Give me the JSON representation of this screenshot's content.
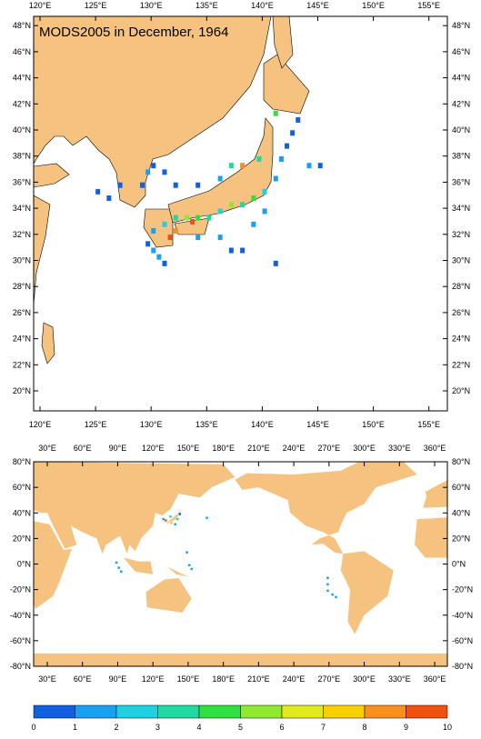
{
  "title": "MODS2005 in December, 1964",
  "regional_map": {
    "x_labels": [
      "120°E",
      "125°E",
      "130°E",
      "135°E",
      "140°E",
      "145°E",
      "150°E",
      "155°E"
    ],
    "y_labels": [
      "20°N",
      "22°N",
      "24°N",
      "26°N",
      "28°N",
      "30°N",
      "32°N",
      "34°N",
      "36°N",
      "38°N",
      "40°N",
      "42°N",
      "44°N",
      "46°N",
      "48°N"
    ],
    "cells": [
      [
        130,
        31,
        1
      ],
      [
        130.5,
        30.5,
        1
      ],
      [
        131,
        30,
        0
      ],
      [
        129.5,
        31.5,
        0
      ],
      [
        130,
        32.5,
        1
      ],
      [
        131,
        33,
        2
      ],
      [
        132,
        33.5,
        3
      ],
      [
        133,
        33.5,
        5
      ],
      [
        133.5,
        33.2,
        9
      ],
      [
        134,
        33.5,
        4
      ],
      [
        135,
        33.5,
        3
      ],
      [
        136,
        34,
        2
      ],
      [
        137,
        34.5,
        5
      ],
      [
        138,
        34.5,
        3
      ],
      [
        139,
        35,
        4
      ],
      [
        140,
        35.5,
        2
      ],
      [
        141,
        36.5,
        1
      ],
      [
        141.5,
        38,
        1
      ],
      [
        142,
        39,
        0
      ],
      [
        142.5,
        40,
        0
      ],
      [
        143,
        41,
        0
      ],
      [
        141,
        41.5,
        4
      ],
      [
        139.5,
        38,
        3
      ],
      [
        138,
        37.5,
        8
      ],
      [
        126,
        35,
        0
      ],
      [
        125,
        35.5,
        0
      ],
      [
        127,
        36,
        0
      ],
      [
        129,
        36,
        0
      ],
      [
        129.5,
        37,
        1
      ],
      [
        130,
        37.5,
        0
      ],
      [
        131,
        37,
        0
      ],
      [
        132,
        36,
        0
      ],
      [
        134,
        36,
        0
      ],
      [
        136,
        32,
        1
      ],
      [
        137,
        31,
        0
      ],
      [
        138,
        31,
        0
      ],
      [
        139,
        33,
        1
      ],
      [
        140,
        34,
        1
      ],
      [
        144,
        37.5,
        1
      ],
      [
        145,
        37.5,
        0
      ],
      [
        141,
        30,
        0
      ],
      [
        134,
        32,
        1
      ],
      [
        131.5,
        32,
        10
      ],
      [
        132,
        32.5,
        8
      ],
      [
        136,
        36.5,
        1
      ],
      [
        137,
        37.5,
        3
      ]
    ]
  },
  "global_map": {
    "x_labels": [
      "30°E",
      "60°E",
      "90°E",
      "120°E",
      "150°E",
      "180°E",
      "210°E",
      "240°E",
      "270°E",
      "300°E",
      "330°E",
      "360°E"
    ],
    "y_labels": [
      "-80°N",
      "-60°N",
      "-40°N",
      "-20°N",
      "0°N",
      "20°N",
      "40°N",
      "60°N",
      "80°N"
    ],
    "cells": [
      [
        130,
        35,
        9
      ],
      [
        135,
        33,
        7
      ],
      [
        140,
        36,
        3
      ],
      [
        128,
        36,
        1
      ],
      [
        134,
        38,
        2
      ],
      [
        142,
        40,
        0
      ],
      [
        138,
        32,
        1
      ],
      [
        88,
        2,
        1
      ],
      [
        90,
        -2,
        1
      ],
      [
        92,
        -5,
        1
      ],
      [
        148,
        10,
        1
      ],
      [
        150,
        0,
        1
      ],
      [
        152,
        -3,
        1
      ],
      [
        165,
        37,
        1
      ],
      [
        268,
        -10,
        1
      ],
      [
        268,
        -20,
        1
      ],
      [
        275,
        -25,
        1
      ],
      [
        272,
        -23,
        1
      ],
      [
        268,
        -15,
        1
      ]
    ]
  },
  "colorbar": {
    "labels": [
      "0",
      "1",
      "2",
      "3",
      "4",
      "5",
      "6",
      "7",
      "8",
      "9",
      "10"
    ],
    "colors": [
      "#1060e0",
      "#1aa0f0",
      "#20d0e0",
      "#20d8a0",
      "#30e040",
      "#90e830",
      "#e0e820",
      "#f8d000",
      "#f89020",
      "#f05010"
    ]
  }
}
